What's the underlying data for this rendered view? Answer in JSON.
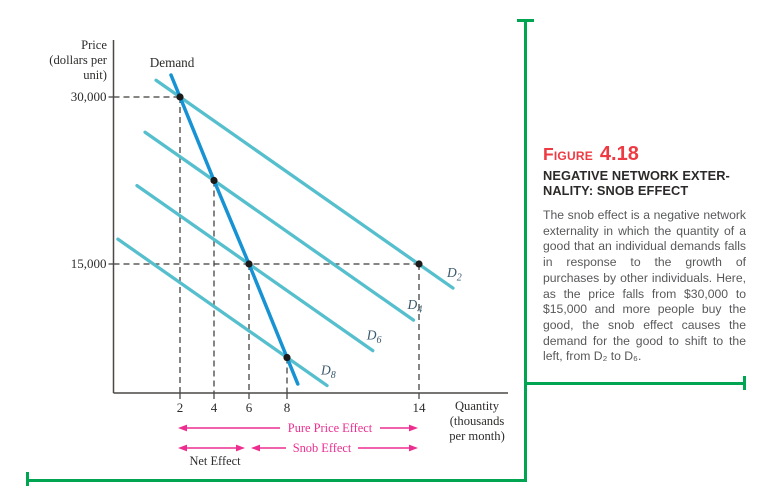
{
  "caption": {
    "figure_label": "Figure",
    "figure_number": "4.18",
    "heading_line1": "NEGATIVE NETWORK EXTER-",
    "heading_line2": "NALITY: SNOB EFFECT",
    "body": "The snob effect is a negative network externality in which the quantity of a good that an individual demands falls in response to the growth of purchases by other individuals. Here, as the price falls from $30,000 to $15,000 and more people buy the good, the snob effect causes the demand for the good to shift to the left, from D₂ to D₆."
  },
  "colors": {
    "figure_red": "#ee3a43",
    "heading_black": "#2c2a29",
    "body_gray": "#57585a",
    "demand_blue": "#1793d4",
    "shifted_cyan": "#56bfce",
    "arrow_pink": "#ec2e90",
    "frame_green": "#00a551",
    "axis_gray": "#4a4947",
    "dash_gray": "#3c3c3a",
    "dot_black": "#1b1b1b"
  },
  "chart_data": {
    "type": "line",
    "axes": {
      "y_title_lines": [
        "Price",
        "(dollars per",
        "unit)"
      ],
      "x_title_lines": [
        "Quantity",
        "(thousands",
        "per month)"
      ],
      "x_ticks": [
        {
          "value": 2,
          "label": "2"
        },
        {
          "value": 4,
          "label": "4"
        },
        {
          "value": 6,
          "label": "6"
        },
        {
          "value": 8,
          "label": "8"
        },
        {
          "value": 14,
          "label": "14"
        }
      ],
      "y_ticks": [
        {
          "value": 30000,
          "label": "30,000"
        },
        {
          "value": 15000,
          "label": "15,000"
        }
      ],
      "xlim": [
        0,
        16.5
      ],
      "ylim": [
        0,
        33000
      ],
      "grid": false
    },
    "demand_curve": {
      "label": "Demand",
      "points": [
        [
          2,
          30000
        ],
        [
          4,
          22500
        ],
        [
          6,
          15000
        ],
        [
          8,
          6600
        ]
      ]
    },
    "shifted_curves": [
      {
        "label": "D",
        "sub": "2",
        "through": [
          2,
          30000
        ],
        "extent_q": [
          0.67,
          15.58
        ]
      },
      {
        "label": "D",
        "sub": "4",
        "through": [
          4,
          22500
        ],
        "extent_q": [
          0.06,
          13.75
        ]
      },
      {
        "label": "D",
        "sub": "6",
        "through": [
          6,
          15000
        ],
        "extent_q": [
          -0.39,
          11.9
        ]
      },
      {
        "label": "D",
        "sub": "8",
        "through": [
          8,
          6600
        ],
        "extent_q": [
          -1.45,
          9.82
        ]
      }
    ],
    "dots": [
      [
        2,
        30000
      ],
      [
        4,
        22500
      ],
      [
        6,
        15000
      ],
      [
        8,
        6600
      ],
      [
        14,
        15000
      ]
    ],
    "dashed_guides": {
      "horizontal": [
        {
          "price": 30000,
          "to_q": 2
        },
        {
          "price": 15000,
          "to_q": 14
        }
      ],
      "vertical": [
        {
          "q": 2,
          "from_price": 30000
        },
        {
          "q": 4,
          "from_price": 22500
        },
        {
          "q": 6,
          "from_price": 15000
        },
        {
          "q": 8,
          "from_price": 6600
        },
        {
          "q": 14,
          "from_price": 15000
        }
      ]
    },
    "annotations": [
      {
        "id": "pure_price",
        "label": "Pure Price Effect",
        "from_q": 2,
        "to_q": 14
      },
      {
        "id": "snob",
        "label": "Snob Effect",
        "from_q": 6,
        "to_q": 14
      },
      {
        "id": "net",
        "label": "Net Effect",
        "from_q": 2,
        "to_q": 6
      }
    ]
  }
}
